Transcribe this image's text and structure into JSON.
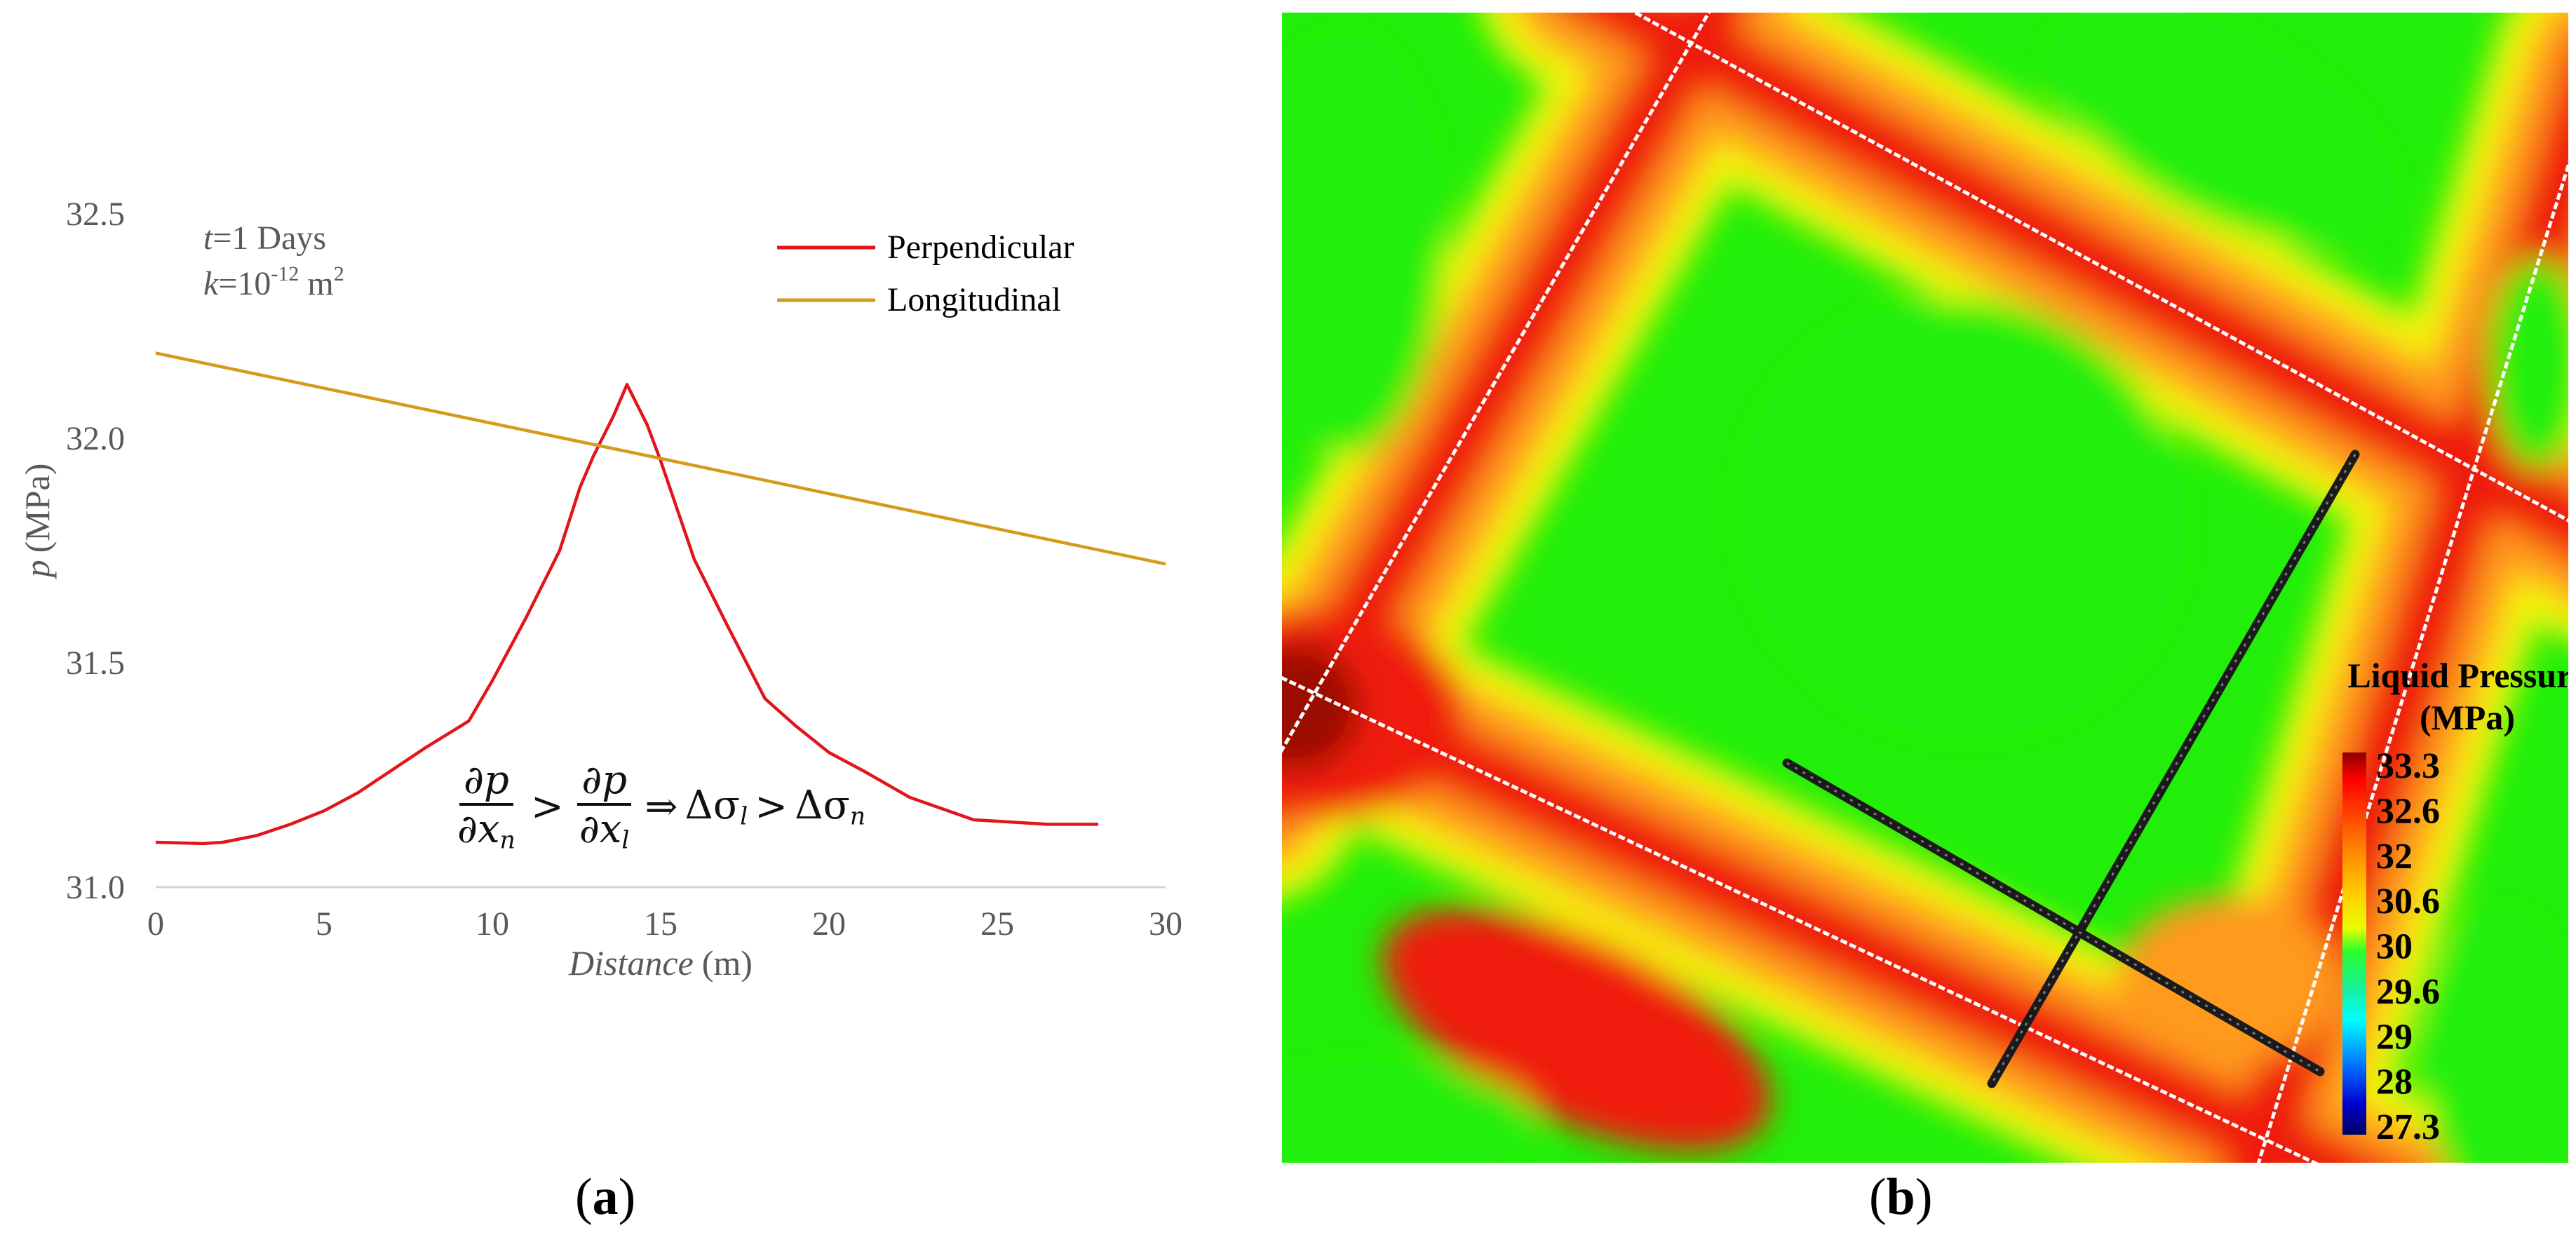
{
  "chart_data": {
    "type": "line",
    "title": "",
    "xlabel_italic": "Distance",
    "xlabel_unit": "(m)",
    "ylabel_italic": "p",
    "ylabel_unit": "(MPa)",
    "xlim": [
      0,
      30
    ],
    "ylim": [
      31.0,
      32.5
    ],
    "x_ticks": [
      "0",
      "5",
      "10",
      "15",
      "20",
      "25",
      "30"
    ],
    "y_ticks": [
      "31.0",
      "31.5",
      "32.0",
      "32.5"
    ],
    "grid": false,
    "legend_position": "top-right",
    "annotations": {
      "time_italic": "t",
      "time_text": "=1 Days",
      "perm_italic": "k",
      "perm_text": "=10",
      "perm_exp": "-12",
      "perm_unit": " m",
      "perm_unit_exp": "2"
    },
    "equation": {
      "num": "∂p",
      "den_left": "∂x",
      "den_left_sub": "n",
      "den_right": "∂x",
      "den_right_sub": "l",
      "gt": ">",
      "implies": "⇒",
      "lhs": "Δσ",
      "lhs_sub": "l",
      "rhs": "Δσ",
      "rhs_sub": "n"
    },
    "series": [
      {
        "name": "Perpendicular",
        "color": "#e0161b",
        "x": [
          0,
          1.4,
          2,
          3,
          4,
          5,
          6,
          7,
          8,
          9.3,
          10,
          11,
          12,
          12.6,
          13,
          13.6,
          14,
          14.6,
          15,
          16,
          17,
          18.1,
          19,
          20,
          21,
          22.4,
          24.3,
          26.5,
          28
        ],
        "y": [
          31.1,
          31.097,
          31.1,
          31.115,
          31.14,
          31.17,
          31.21,
          31.26,
          31.31,
          31.37,
          31.46,
          31.6,
          31.75,
          31.89,
          31.96,
          32.05,
          32.12,
          32.03,
          31.95,
          31.73,
          31.58,
          31.42,
          31.36,
          31.3,
          31.26,
          31.2,
          31.15,
          31.14,
          31.14
        ]
      },
      {
        "name": "Longitudinal",
        "color": "#d49a1a",
        "x": [
          0,
          30
        ],
        "y": [
          32.19,
          31.72
        ]
      }
    ]
  },
  "contour": {
    "colorbar_title_line1": "Liquid Pressure",
    "colorbar_title_line2": "(MPa)",
    "colorbar_labels": [
      "33.3",
      "32.6",
      "32",
      "30.6",
      "30",
      "29.6",
      "29",
      "28",
      "27.3"
    ],
    "colors": {
      "green": "#21ef09",
      "yellow": "#f4f40c",
      "orange": "#ff9a1c",
      "red": "#ef1e10",
      "darkred": "#9a0a06"
    }
  },
  "panel_labels": {
    "a": "a",
    "b": "b"
  }
}
